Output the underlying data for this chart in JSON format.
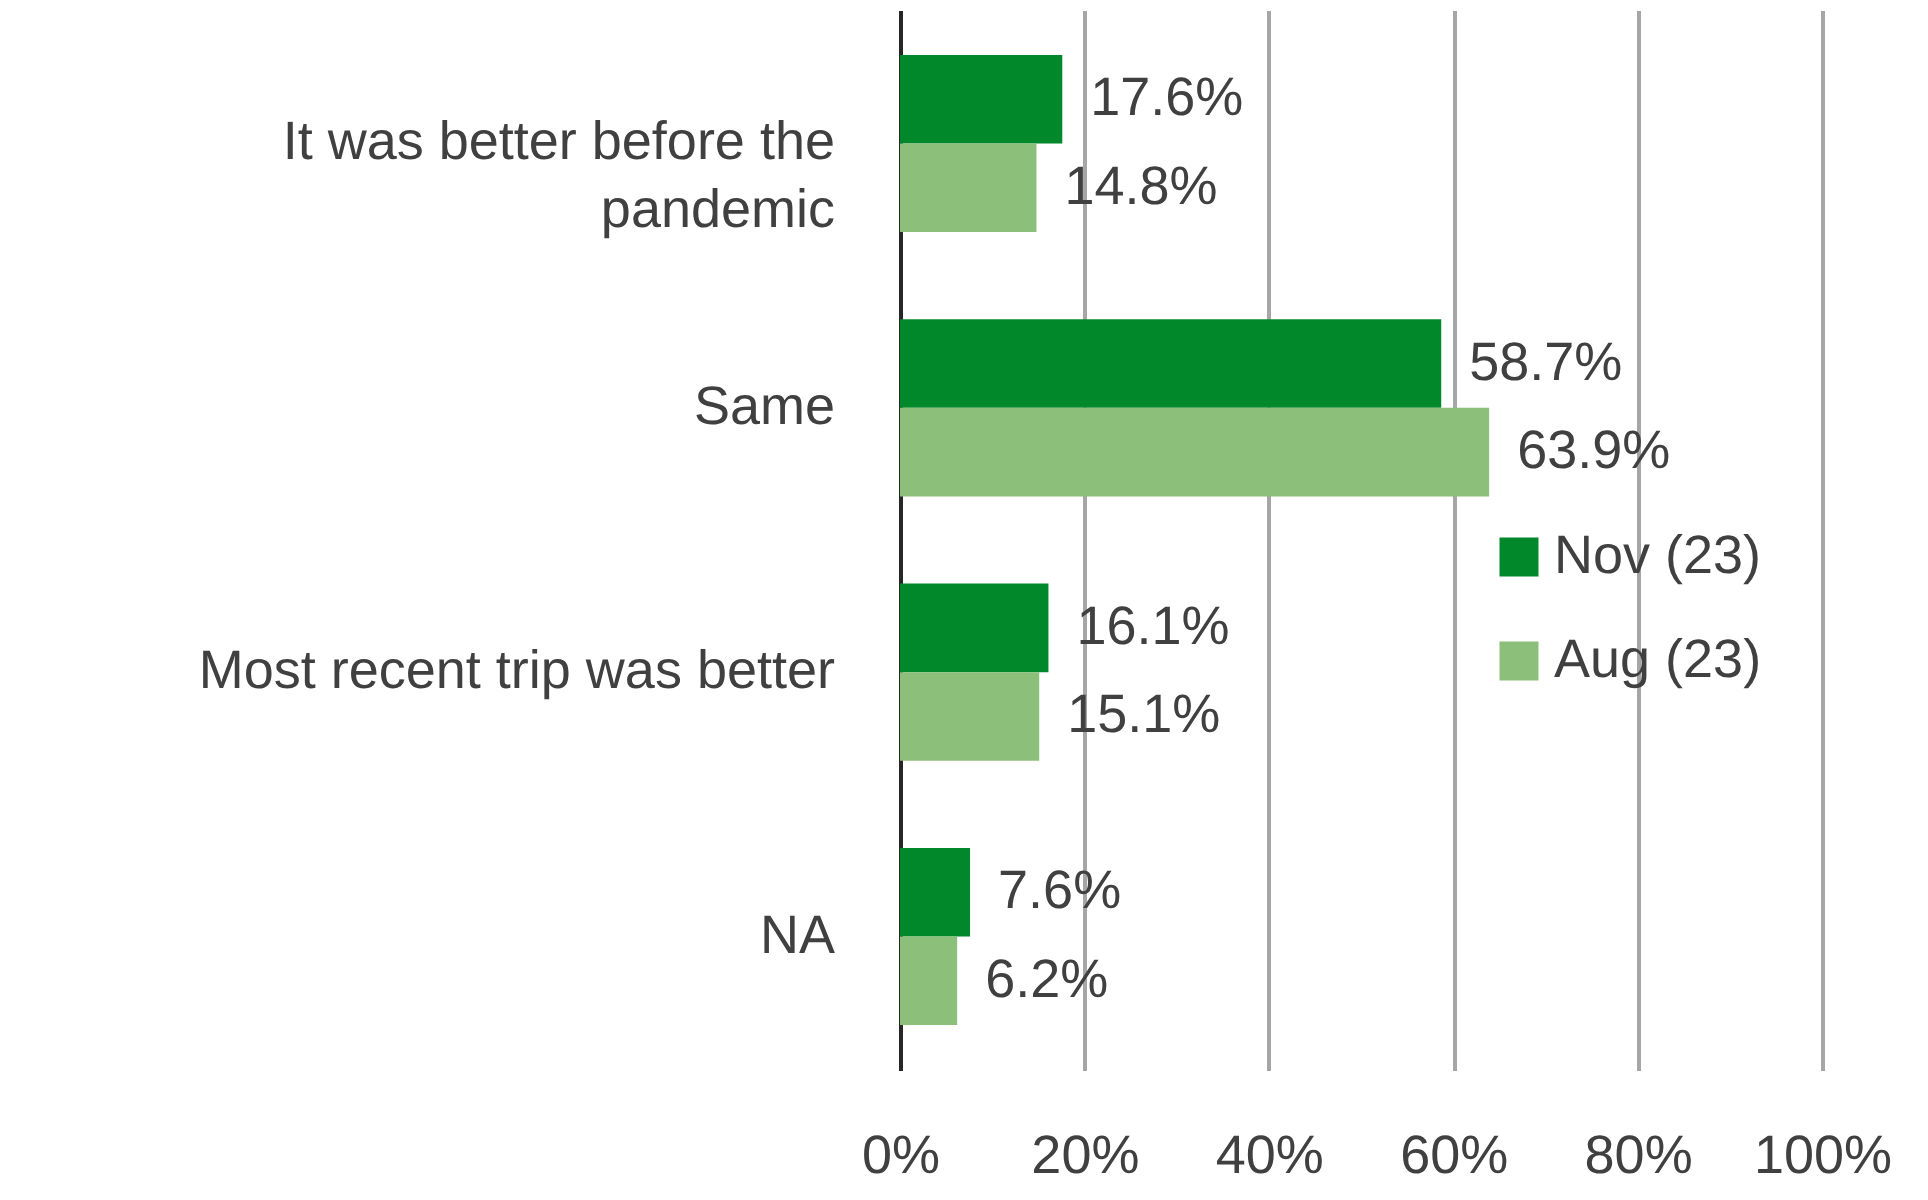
{
  "chart_data": {
    "type": "bar",
    "orientation": "horizontal",
    "categories": [
      "It was better before the pandemic",
      "Same",
      "Most recent trip was better",
      "NA"
    ],
    "series": [
      {
        "name": "Nov (23)",
        "color": "#00882b",
        "values": [
          17.6,
          58.7,
          16.1,
          7.6
        ],
        "value_labels": [
          "17.6%",
          "58.7%",
          "16.1%",
          "7.6%"
        ]
      },
      {
        "name": "Aug (23)",
        "color": "#8cbf7a",
        "values": [
          14.8,
          63.9,
          15.1,
          6.2
        ],
        "value_labels": [
          "14.8%",
          "63.9%",
          "15.1%",
          "6.2%"
        ]
      }
    ],
    "xlim": [
      0,
      100
    ],
    "xticks": [
      {
        "value": 0,
        "label": "0%"
      },
      {
        "value": 20,
        "label": "20%"
      },
      {
        "value": 40,
        "label": "40%"
      },
      {
        "value": 60,
        "label": "60%"
      },
      {
        "value": 80,
        "label": "80%"
      },
      {
        "value": 100,
        "label": "100%"
      }
    ],
    "grid": "x",
    "legend": "right"
  }
}
